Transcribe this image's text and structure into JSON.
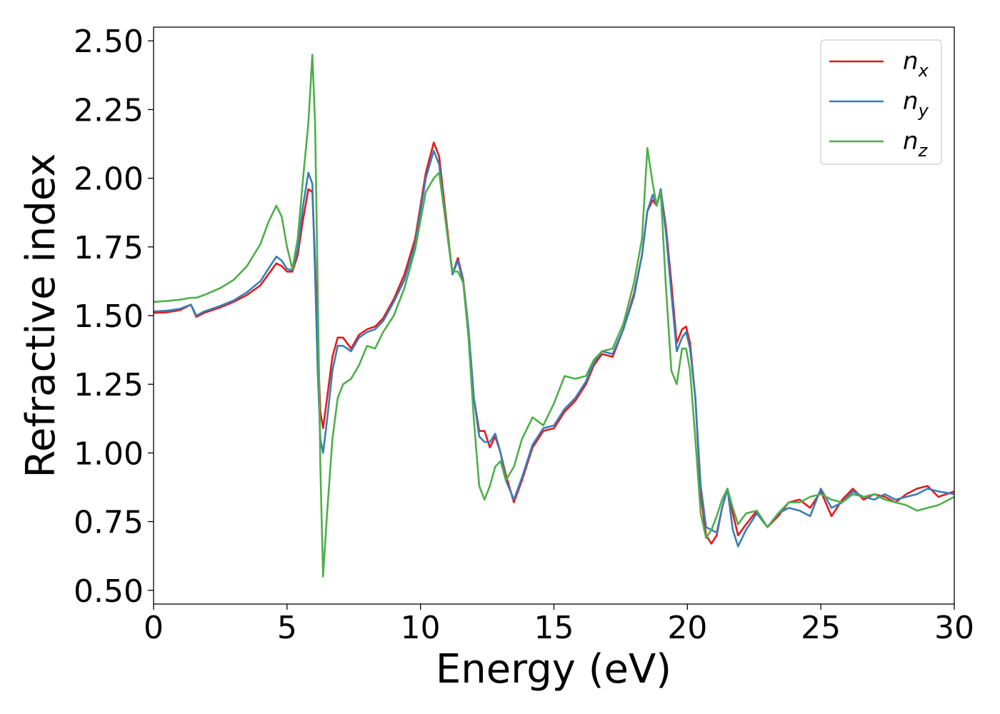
{
  "chart_data": {
    "type": "line",
    "title": "",
    "xlabel": "Energy (eV)",
    "ylabel": "Refractive index",
    "xlim": [
      0,
      30
    ],
    "ylim": [
      0.45,
      2.55
    ],
    "xticks": [
      0,
      5,
      10,
      15,
      20,
      25,
      30
    ],
    "xtick_labels": [
      "0",
      "5",
      "10",
      "15",
      "20",
      "25",
      "30"
    ],
    "yticks": [
      0.5,
      0.75,
      1.0,
      1.25,
      1.5,
      1.75,
      2.0,
      2.25,
      2.5
    ],
    "ytick_labels": [
      "0.50",
      "0.75",
      "1.00",
      "1.25",
      "1.50",
      "1.75",
      "2.00",
      "2.25",
      "2.50"
    ],
    "grid": false,
    "legend_position": "top-right",
    "series": [
      {
        "name": "n",
        "subscript": "x",
        "color": "#e41a1c",
        "x": [
          0,
          0.5,
          1.0,
          1.4,
          1.6,
          1.9,
          2.5,
          3.0,
          3.5,
          4.0,
          4.3,
          4.6,
          4.8,
          5.0,
          5.2,
          5.4,
          5.6,
          5.8,
          5.95,
          6.05,
          6.15,
          6.25,
          6.35,
          6.5,
          6.7,
          6.9,
          7.1,
          7.4,
          7.7,
          8.0,
          8.3,
          8.6,
          9.0,
          9.4,
          9.8,
          10.2,
          10.5,
          10.7,
          11.0,
          11.2,
          11.4,
          11.6,
          11.8,
          12.0,
          12.2,
          12.4,
          12.6,
          12.8,
          13.0,
          13.2,
          13.5,
          13.8,
          14.2,
          14.6,
          15.0,
          15.4,
          15.8,
          16.2,
          16.5,
          16.8,
          17.2,
          17.6,
          18.0,
          18.3,
          18.5,
          18.7,
          18.85,
          19.0,
          19.2,
          19.4,
          19.6,
          19.8,
          19.95,
          20.1,
          20.3,
          20.5,
          20.7,
          20.9,
          21.1,
          21.3,
          21.5,
          21.7,
          21.9,
          22.2,
          22.6,
          23.0,
          23.4,
          23.8,
          24.2,
          24.6,
          25.0,
          25.4,
          25.8,
          26.2,
          26.6,
          27.0,
          27.4,
          27.8,
          28.2,
          28.6,
          29.0,
          29.4,
          30.0
        ],
        "y": [
          1.51,
          1.512,
          1.52,
          1.54,
          1.495,
          1.51,
          1.53,
          1.55,
          1.575,
          1.61,
          1.65,
          1.69,
          1.68,
          1.66,
          1.66,
          1.72,
          1.85,
          1.96,
          1.95,
          1.7,
          1.4,
          1.15,
          1.09,
          1.2,
          1.35,
          1.42,
          1.42,
          1.38,
          1.43,
          1.45,
          1.46,
          1.49,
          1.56,
          1.65,
          1.78,
          2.02,
          2.13,
          2.08,
          1.82,
          1.65,
          1.71,
          1.63,
          1.45,
          1.2,
          1.08,
          1.08,
          1.02,
          1.06,
          1.0,
          0.92,
          0.82,
          0.9,
          1.02,
          1.08,
          1.09,
          1.15,
          1.19,
          1.25,
          1.32,
          1.36,
          1.35,
          1.45,
          1.58,
          1.72,
          1.88,
          1.92,
          1.9,
          1.96,
          1.82,
          1.62,
          1.4,
          1.45,
          1.46,
          1.4,
          1.2,
          0.85,
          0.7,
          0.67,
          0.7,
          0.8,
          0.87,
          0.78,
          0.7,
          0.74,
          0.79,
          0.73,
          0.77,
          0.82,
          0.83,
          0.8,
          0.86,
          0.77,
          0.83,
          0.87,
          0.83,
          0.85,
          0.84,
          0.82,
          0.85,
          0.87,
          0.88,
          0.84,
          0.86
        ]
      },
      {
        "name": "n",
        "subscript": "y",
        "color": "#377eb8",
        "x": [
          0,
          0.5,
          1.0,
          1.4,
          1.6,
          1.9,
          2.5,
          3.0,
          3.5,
          4.0,
          4.3,
          4.6,
          4.8,
          5.0,
          5.2,
          5.4,
          5.6,
          5.8,
          5.95,
          6.05,
          6.15,
          6.25,
          6.35,
          6.5,
          6.7,
          6.9,
          7.1,
          7.4,
          7.7,
          8.0,
          8.3,
          8.6,
          9.0,
          9.4,
          9.8,
          10.2,
          10.5,
          10.7,
          11.0,
          11.2,
          11.4,
          11.6,
          11.8,
          12.0,
          12.2,
          12.4,
          12.6,
          12.8,
          13.0,
          13.2,
          13.5,
          13.8,
          14.2,
          14.6,
          15.0,
          15.4,
          15.8,
          16.2,
          16.5,
          16.8,
          17.2,
          17.6,
          18.0,
          18.3,
          18.5,
          18.7,
          18.85,
          19.0,
          19.2,
          19.4,
          19.6,
          19.8,
          19.95,
          20.1,
          20.3,
          20.5,
          20.7,
          20.9,
          21.1,
          21.3,
          21.5,
          21.7,
          21.9,
          22.2,
          22.6,
          23.0,
          23.4,
          23.8,
          24.2,
          24.6,
          25.0,
          25.4,
          25.8,
          26.2,
          26.6,
          27.0,
          27.4,
          27.8,
          28.2,
          28.6,
          29.0,
          29.4,
          30.0
        ],
        "y": [
          1.515,
          1.518,
          1.525,
          1.54,
          1.5,
          1.515,
          1.535,
          1.555,
          1.585,
          1.625,
          1.67,
          1.715,
          1.7,
          1.67,
          1.665,
          1.74,
          1.9,
          2.02,
          1.98,
          1.65,
          1.3,
          1.05,
          1.0,
          1.12,
          1.3,
          1.39,
          1.39,
          1.37,
          1.42,
          1.44,
          1.45,
          1.48,
          1.55,
          1.63,
          1.76,
          2.0,
          2.1,
          2.05,
          1.8,
          1.65,
          1.7,
          1.62,
          1.45,
          1.2,
          1.06,
          1.04,
          1.04,
          1.07,
          1.0,
          0.9,
          0.83,
          0.91,
          1.03,
          1.09,
          1.1,
          1.16,
          1.2,
          1.26,
          1.33,
          1.37,
          1.36,
          1.45,
          1.57,
          1.72,
          1.88,
          1.94,
          1.9,
          1.96,
          1.8,
          1.58,
          1.37,
          1.42,
          1.44,
          1.38,
          1.2,
          0.88,
          0.73,
          0.72,
          0.71,
          0.8,
          0.87,
          0.72,
          0.66,
          0.72,
          0.78,
          0.73,
          0.78,
          0.8,
          0.79,
          0.77,
          0.87,
          0.8,
          0.82,
          0.86,
          0.84,
          0.83,
          0.85,
          0.83,
          0.84,
          0.85,
          0.87,
          0.86,
          0.85
        ]
      },
      {
        "name": "n",
        "subscript": "z",
        "color": "#4daf4a",
        "x": [
          0,
          0.5,
          1.0,
          1.4,
          1.6,
          1.9,
          2.5,
          3.0,
          3.5,
          4.0,
          4.3,
          4.6,
          4.8,
          5.0,
          5.2,
          5.4,
          5.6,
          5.8,
          5.95,
          6.05,
          6.15,
          6.25,
          6.35,
          6.5,
          6.7,
          6.9,
          7.1,
          7.4,
          7.7,
          8.0,
          8.3,
          8.6,
          9.0,
          9.4,
          9.8,
          10.2,
          10.5,
          10.7,
          11.0,
          11.2,
          11.4,
          11.6,
          11.8,
          12.0,
          12.2,
          12.4,
          12.6,
          12.8,
          13.0,
          13.2,
          13.5,
          13.8,
          14.2,
          14.6,
          15.0,
          15.4,
          15.8,
          16.2,
          16.5,
          16.8,
          17.2,
          17.6,
          18.0,
          18.3,
          18.5,
          18.7,
          18.85,
          19.0,
          19.2,
          19.4,
          19.6,
          19.8,
          19.95,
          20.1,
          20.3,
          20.5,
          20.7,
          20.9,
          21.1,
          21.3,
          21.5,
          21.7,
          21.9,
          22.2,
          22.6,
          23.0,
          23.4,
          23.8,
          24.2,
          24.6,
          25.0,
          25.4,
          25.8,
          26.2,
          26.6,
          27.0,
          27.4,
          27.8,
          28.2,
          28.6,
          29.0,
          29.4,
          30.0
        ],
        "y": [
          1.55,
          1.553,
          1.558,
          1.565,
          1.565,
          1.575,
          1.6,
          1.63,
          1.68,
          1.76,
          1.84,
          1.9,
          1.86,
          1.75,
          1.67,
          1.78,
          2.0,
          2.2,
          2.45,
          2.2,
          1.6,
          0.95,
          0.55,
          0.78,
          1.05,
          1.2,
          1.25,
          1.27,
          1.32,
          1.39,
          1.38,
          1.44,
          1.5,
          1.6,
          1.74,
          1.95,
          2.0,
          2.02,
          1.8,
          1.66,
          1.66,
          1.62,
          1.42,
          1.12,
          0.88,
          0.83,
          0.88,
          0.95,
          0.97,
          0.9,
          0.95,
          1.05,
          1.13,
          1.1,
          1.18,
          1.28,
          1.27,
          1.28,
          1.34,
          1.37,
          1.38,
          1.47,
          1.62,
          1.78,
          2.11,
          1.98,
          1.9,
          1.95,
          1.6,
          1.3,
          1.25,
          1.38,
          1.38,
          1.3,
          1.05,
          0.78,
          0.69,
          0.72,
          0.77,
          0.83,
          0.87,
          0.8,
          0.74,
          0.78,
          0.79,
          0.73,
          0.78,
          0.82,
          0.82,
          0.84,
          0.85,
          0.83,
          0.82,
          0.85,
          0.84,
          0.85,
          0.83,
          0.82,
          0.81,
          0.79,
          0.8,
          0.81,
          0.84
        ]
      }
    ]
  }
}
